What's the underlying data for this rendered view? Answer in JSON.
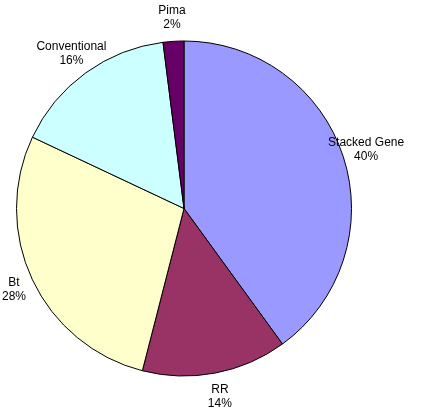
{
  "chart_data": {
    "type": "pie",
    "categories": [
      "Stacked Gene",
      "RR",
      "Bt",
      "Conventional",
      "Pima"
    ],
    "values": [
      40,
      14,
      28,
      16,
      2
    ],
    "value_labels": [
      "40%",
      "14%",
      "28%",
      "16%",
      "2%"
    ],
    "colors": [
      "#9999ff",
      "#993366",
      "#ffffcc",
      "#ccffff",
      "#660066"
    ],
    "data_labels": true
  }
}
